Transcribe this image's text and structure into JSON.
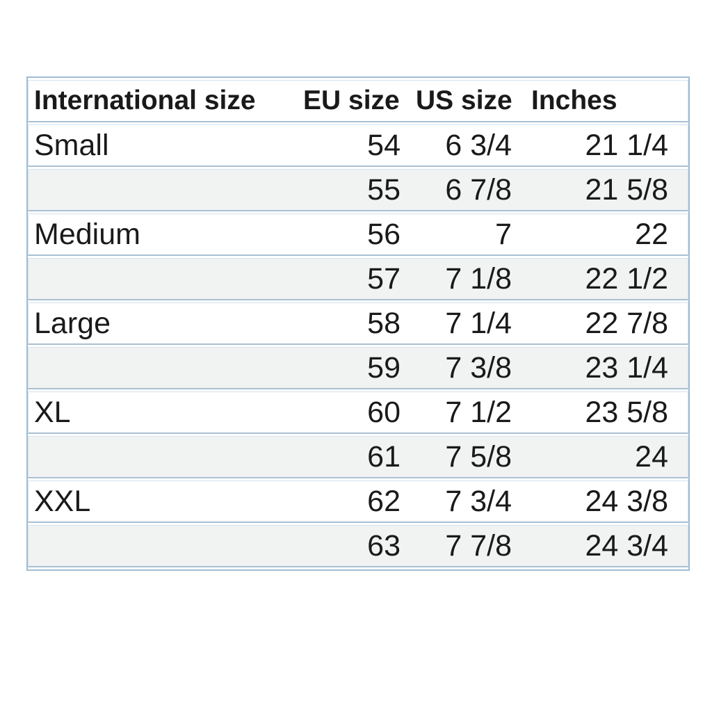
{
  "chart_data": {
    "type": "table",
    "columns": [
      "International size",
      "EU size",
      "US size",
      "Inches"
    ],
    "rows": [
      [
        "Small",
        "54",
        "6 3/4",
        "21 1/4"
      ],
      [
        "",
        "55",
        "6 7/8",
        "21 5/8"
      ],
      [
        "Medium",
        "56",
        "7",
        "22"
      ],
      [
        "",
        "57",
        "7 1/8",
        "22 1/2"
      ],
      [
        "Large",
        "58",
        "7 1/4",
        "22 7/8"
      ],
      [
        "",
        "59",
        "7 3/8",
        "23 1/4"
      ],
      [
        "XL",
        "60",
        "7 1/2",
        "23 5/8"
      ],
      [
        "",
        "61",
        "7 5/8",
        "24"
      ],
      [
        "XXL",
        "62",
        "7 3/4",
        "24 3/8"
      ],
      [
        "",
        "63",
        "7 7/8",
        "24 3/4"
      ]
    ],
    "layout": {
      "header_row": true,
      "zebra_striping": true,
      "first_column_align": "left",
      "value_columns_align": "right",
      "grid": "horizontal-lines-only"
    }
  },
  "colors": {
    "page-bg": "#ffffff",
    "outer-border": "#9fbcd3",
    "row-line-dark": "#a8c0d2",
    "row-line-light": "#d3e3ef",
    "stripe-bg": "#f1f2f2",
    "row-bg": "#ffffff",
    "text": "#1a1a1a"
  }
}
